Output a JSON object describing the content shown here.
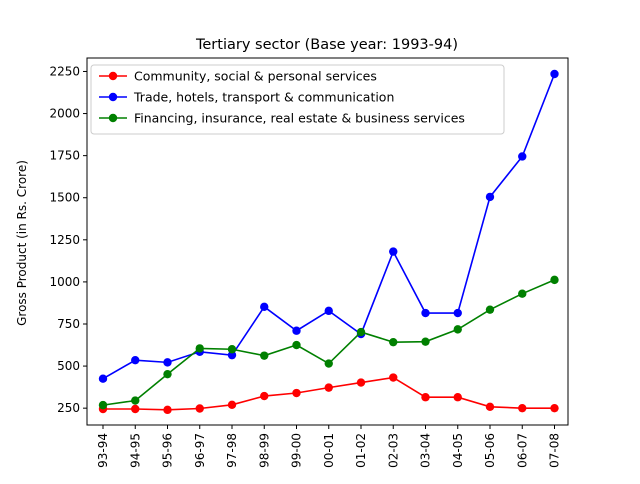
{
  "chart_data": {
    "type": "line",
    "title": "Tertiary sector (Base year: 1993-94)",
    "xlabel": "",
    "ylabel": "Gross Product (in Rs. Crore)",
    "categories": [
      "93-94",
      "94-95",
      "95-96",
      "96-97",
      "97-98",
      "98-99",
      "99-00",
      "00-01",
      "01-02",
      "02-03",
      "03-04",
      "04-05",
      "05-06",
      "06-07",
      "07-08"
    ],
    "ylim": [
      150,
      2330
    ],
    "yticks": [
      250,
      500,
      750,
      1000,
      1250,
      1500,
      1750,
      2000,
      2250
    ],
    "legend_position": "top-left",
    "grid": false,
    "series": [
      {
        "name": "Community, social & personal services",
        "color": "#ff0000",
        "values": [
          245,
          245,
          240,
          248,
          270,
          322,
          340,
          372,
          402,
          432,
          315,
          315,
          258,
          250,
          250
        ]
      },
      {
        "name": "Trade, hotels, transport & communication",
        "color": "#0000ff",
        "values": [
          425,
          535,
          522,
          585,
          565,
          852,
          710,
          828,
          690,
          1180,
          815,
          815,
          1505,
          1745,
          2235
        ]
      },
      {
        "name": "Financing, insurance, real estate & business services",
        "color": "#008000",
        "values": [
          268,
          295,
          452,
          605,
          600,
          562,
          625,
          515,
          702,
          642,
          645,
          718,
          835,
          930,
          1012
        ]
      }
    ]
  }
}
